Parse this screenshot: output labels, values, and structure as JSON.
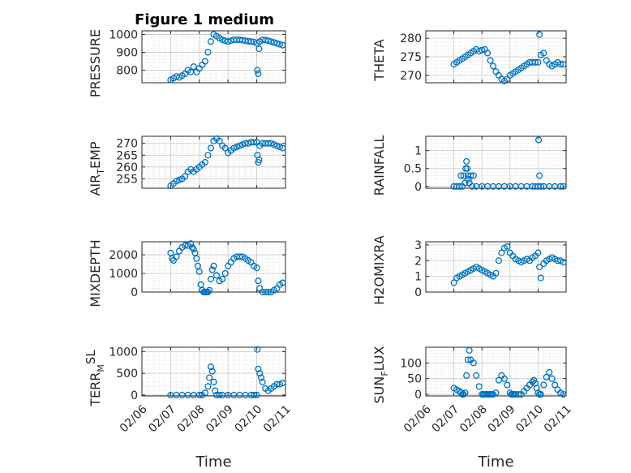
{
  "title": "Figure 1 medium",
  "marker_color": "#0072bd",
  "chart_data": [
    {
      "type": "scatter",
      "ylabel": "PRESSURE",
      "ylim": [
        730,
        1020
      ],
      "yticks": [
        "800",
        "900",
        "1000"
      ],
      "ytick_values": [
        800,
        900,
        1000
      ],
      "xticks": [],
      "xlabel": "",
      "grid": "on",
      "x": [
        7.0,
        7.1,
        7.2,
        7.3,
        7.4,
        7.5,
        7.6,
        7.7,
        7.8,
        7.9,
        8.0,
        8.1,
        8.2,
        8.3,
        8.4,
        8.5,
        8.6,
        8.7,
        8.8,
        8.9,
        9.0,
        9.1,
        9.2,
        9.3,
        9.4,
        9.5,
        9.6,
        9.7,
        9.8,
        9.9,
        10.0,
        10.02,
        10.05,
        10.08,
        10.1,
        10.2,
        10.3,
        10.4,
        10.5,
        10.6,
        10.7,
        10.8,
        10.9
      ],
      "values": [
        745,
        755,
        765,
        760,
        770,
        780,
        800,
        790,
        820,
        790,
        810,
        830,
        850,
        900,
        960,
        1000,
        990,
        980,
        970,
        965,
        960,
        965,
        970,
        970,
        970,
        968,
        965,
        962,
        960,
        958,
        950,
        800,
        780,
        920,
        960,
        970,
        968,
        965,
        960,
        955,
        950,
        945,
        940
      ]
    },
    {
      "type": "scatter",
      "ylabel": "THETA",
      "ylim": [
        268,
        282
      ],
      "yticks": [
        "270",
        "275",
        "280"
      ],
      "ytick_values": [
        270,
        275,
        280
      ],
      "xticks": [],
      "xlabel": "",
      "grid": "on",
      "x": [
        7.0,
        7.1,
        7.2,
        7.3,
        7.4,
        7.5,
        7.6,
        7.7,
        7.8,
        7.9,
        8.0,
        8.1,
        8.2,
        8.3,
        8.4,
        8.5,
        8.6,
        8.7,
        8.8,
        8.9,
        9.0,
        9.1,
        9.2,
        9.3,
        9.4,
        9.5,
        9.6,
        9.7,
        9.8,
        9.9,
        10.0,
        10.05,
        10.1,
        10.2,
        10.3,
        10.4,
        10.5,
        10.6,
        10.7,
        10.8,
        10.9
      ],
      "values": [
        273,
        273.5,
        274,
        274.5,
        275,
        275.5,
        276,
        276.5,
        277,
        276.5,
        276.8,
        277,
        276,
        274,
        272.5,
        271,
        270,
        269,
        268.5,
        269,
        270,
        270.5,
        271,
        271.5,
        272,
        272.5,
        273,
        273.5,
        273.5,
        273.5,
        273.5,
        281,
        275.5,
        276,
        274,
        273,
        272.5,
        273,
        273.5,
        273,
        273
      ]
    },
    {
      "type": "scatter",
      "ylabel": "AIR",
      "ylabel_sub": "T",
      "ylabel_rest": "EMP",
      "ylim": [
        251,
        273
      ],
      "yticks": [
        "255",
        "260",
        "265",
        "270"
      ],
      "ytick_values": [
        255,
        260,
        265,
        270
      ],
      "xticks": [],
      "xlabel": "",
      "grid": "on",
      "x": [
        7.0,
        7.1,
        7.2,
        7.3,
        7.4,
        7.5,
        7.6,
        7.7,
        7.8,
        7.9,
        8.0,
        8.1,
        8.2,
        8.3,
        8.4,
        8.5,
        8.6,
        8.7,
        8.8,
        8.9,
        9.0,
        9.1,
        9.2,
        9.3,
        9.4,
        9.5,
        9.6,
        9.7,
        9.8,
        9.9,
        10.0,
        10.02,
        10.05,
        10.08,
        10.1,
        10.2,
        10.3,
        10.4,
        10.5,
        10.6,
        10.7,
        10.8,
        10.9
      ],
      "values": [
        252,
        253,
        254,
        254.5,
        255,
        256,
        258,
        259,
        258,
        259,
        260,
        261,
        262,
        265,
        268,
        271,
        272,
        271,
        269,
        268,
        266,
        267,
        268,
        268.5,
        269,
        269.5,
        270,
        270,
        270.5,
        270.5,
        270.5,
        265,
        262,
        263,
        269,
        270,
        270,
        270,
        270,
        269.5,
        269,
        268.5,
        268
      ]
    },
    {
      "type": "scatter",
      "ylabel": "RAINFALL",
      "ylim": [
        -0.05,
        1.4
      ],
      "yticks": [
        "0",
        "0.5",
        "1"
      ],
      "ytick_values": [
        0,
        0.5,
        1
      ],
      "xticks": [],
      "xlabel": "",
      "grid": "on",
      "x": [
        7.0,
        7.1,
        7.2,
        7.25,
        7.3,
        7.35,
        7.4,
        7.42,
        7.45,
        7.48,
        7.5,
        7.52,
        7.55,
        7.6,
        7.65,
        7.7,
        7.8,
        8.0,
        8.2,
        8.4,
        8.6,
        8.8,
        9.0,
        9.2,
        9.4,
        9.6,
        9.8,
        9.9,
        10.0,
        10.02,
        10.05,
        10.1,
        10.2,
        10.4,
        10.6,
        10.8,
        10.9
      ],
      "values": [
        0,
        0,
        0,
        0.3,
        0,
        0.3,
        0.1,
        0.5,
        0.7,
        0.5,
        0.3,
        0.2,
        0.1,
        0.3,
        0,
        0.3,
        0,
        0,
        0,
        0,
        0,
        0,
        0,
        0,
        0,
        0,
        0,
        0,
        0,
        1.3,
        0.3,
        0,
        0,
        0,
        0,
        0,
        0
      ]
    },
    {
      "type": "scatter",
      "ylabel": "MIXDEPTH",
      "ylim": [
        0,
        2700
      ],
      "yticks": [
        "0",
        "1000",
        "2000"
      ],
      "ytick_values": [
        0,
        1000,
        2000
      ],
      "xticks": [],
      "xlabel": "",
      "grid": "on",
      "x": [
        7.0,
        7.05,
        7.1,
        7.2,
        7.3,
        7.4,
        7.5,
        7.6,
        7.7,
        7.75,
        7.8,
        7.85,
        7.9,
        7.95,
        8.0,
        8.05,
        8.1,
        8.15,
        8.2,
        8.25,
        8.3,
        8.35,
        8.4,
        8.45,
        8.5,
        8.6,
        8.7,
        8.8,
        8.9,
        9.0,
        9.1,
        9.2,
        9.3,
        9.4,
        9.5,
        9.6,
        9.7,
        9.8,
        9.9,
        10.0,
        10.05,
        10.1,
        10.2,
        10.3,
        10.4,
        10.5,
        10.6,
        10.7,
        10.8,
        10.9
      ],
      "values": [
        2100,
        1800,
        1700,
        1900,
        2200,
        2400,
        2500,
        2500,
        2600,
        2400,
        2300,
        2100,
        1800,
        1400,
        1100,
        400,
        100,
        0,
        0,
        0,
        0,
        100,
        700,
        1200,
        1400,
        900,
        600,
        700,
        1000,
        1400,
        1600,
        1800,
        1900,
        1900,
        1900,
        1800,
        1700,
        1600,
        1400,
        1300,
        600,
        200,
        0,
        0,
        0,
        0,
        100,
        200,
        400,
        500
      ]
    },
    {
      "type": "scatter",
      "ylabel": "H2OMIXRA",
      "ylim": [
        0,
        3.2
      ],
      "yticks": [
        "0",
        "1",
        "2",
        "3"
      ],
      "ytick_values": [
        0,
        1,
        2,
        3
      ],
      "xticks": [],
      "xlabel": "",
      "grid": "on",
      "x": [
        7.0,
        7.1,
        7.2,
        7.3,
        7.4,
        7.5,
        7.6,
        7.7,
        7.8,
        7.9,
        8.0,
        8.1,
        8.2,
        8.3,
        8.4,
        8.5,
        8.6,
        8.7,
        8.8,
        8.9,
        9.0,
        9.1,
        9.2,
        9.3,
        9.4,
        9.5,
        9.6,
        9.7,
        9.8,
        9.9,
        10.0,
        10.05,
        10.1,
        10.2,
        10.3,
        10.4,
        10.5,
        10.6,
        10.7,
        10.8,
        10.9
      ],
      "values": [
        0.6,
        0.9,
        1.0,
        1.1,
        1.2,
        1.3,
        1.4,
        1.5,
        1.6,
        1.5,
        1.4,
        1.3,
        1.2,
        1.1,
        1.0,
        1.2,
        2.0,
        2.5,
        2.8,
        2.9,
        2.5,
        2.3,
        2.1,
        2.0,
        1.9,
        2.0,
        2.1,
        2.0,
        2.2,
        2.3,
        2.5,
        1.6,
        0.9,
        1.8,
        2.0,
        2.1,
        2.2,
        2.1,
        2.0,
        2.0,
        1.9
      ]
    },
    {
      "type": "scatter",
      "ylabel": "TERR",
      "ylabel_sub": "M",
      "ylabel_sup": "SL",
      "ylim": [
        -20,
        1100
      ],
      "yticks": [
        "0",
        "500",
        "1000"
      ],
      "ytick_values": [
        0,
        500,
        1000
      ],
      "xticks": [
        "02/06",
        "02/07",
        "02/08",
        "02/09",
        "02/10",
        "02/11"
      ],
      "xlabel": "Time",
      "grid": "on",
      "x": [
        7.0,
        7.2,
        7.4,
        7.6,
        7.8,
        8.0,
        8.1,
        8.2,
        8.3,
        8.35,
        8.4,
        8.45,
        8.5,
        8.55,
        8.6,
        8.7,
        8.8,
        9.0,
        9.2,
        9.4,
        9.6,
        9.8,
        9.9,
        10.0,
        10.02,
        10.05,
        10.1,
        10.15,
        10.2,
        10.3,
        10.4,
        10.5,
        10.6,
        10.7,
        10.8,
        10.9
      ],
      "values": [
        0,
        0,
        0,
        0,
        0,
        0,
        0,
        50,
        200,
        400,
        650,
        550,
        300,
        100,
        0,
        0,
        0,
        0,
        0,
        0,
        0,
        0,
        0,
        0,
        1050,
        600,
        500,
        400,
        300,
        150,
        100,
        150,
        200,
        250,
        250,
        280
      ]
    },
    {
      "type": "scatter",
      "ylabel": "SUN",
      "ylabel_sub": "F",
      "ylabel_rest": "LUX",
      "ylim": [
        -5,
        150
      ],
      "yticks": [
        "0",
        "50",
        "100"
      ],
      "ytick_values": [
        0,
        50,
        100
      ],
      "xticks": [
        "02/06",
        "02/07",
        "02/08",
        "02/09",
        "02/10",
        "02/11"
      ],
      "xlabel": "Time",
      "grid": "on",
      "x": [
        7.0,
        7.1,
        7.2,
        7.25,
        7.3,
        7.35,
        7.4,
        7.45,
        7.5,
        7.55,
        7.6,
        7.7,
        7.8,
        7.9,
        8.0,
        8.05,
        8.1,
        8.15,
        8.2,
        8.25,
        8.3,
        8.35,
        8.4,
        8.5,
        8.6,
        8.7,
        8.8,
        8.9,
        9.0,
        9.05,
        9.1,
        9.15,
        9.2,
        9.3,
        9.4,
        9.5,
        9.6,
        9.7,
        9.8,
        9.85,
        9.9,
        9.95,
        10.0,
        10.05,
        10.1,
        10.2,
        10.3,
        10.4,
        10.5,
        10.6,
        10.7,
        10.8,
        10.9
      ],
      "values": [
        20,
        15,
        10,
        5,
        0,
        0,
        5,
        60,
        110,
        140,
        110,
        100,
        60,
        25,
        0,
        0,
        0,
        0,
        0,
        0,
        0,
        0,
        0,
        5,
        45,
        60,
        50,
        30,
        5,
        0,
        0,
        0,
        0,
        0,
        0,
        10,
        20,
        30,
        40,
        45,
        35,
        20,
        5,
        0,
        0,
        30,
        55,
        70,
        50,
        30,
        15,
        5,
        0
      ]
    }
  ]
}
